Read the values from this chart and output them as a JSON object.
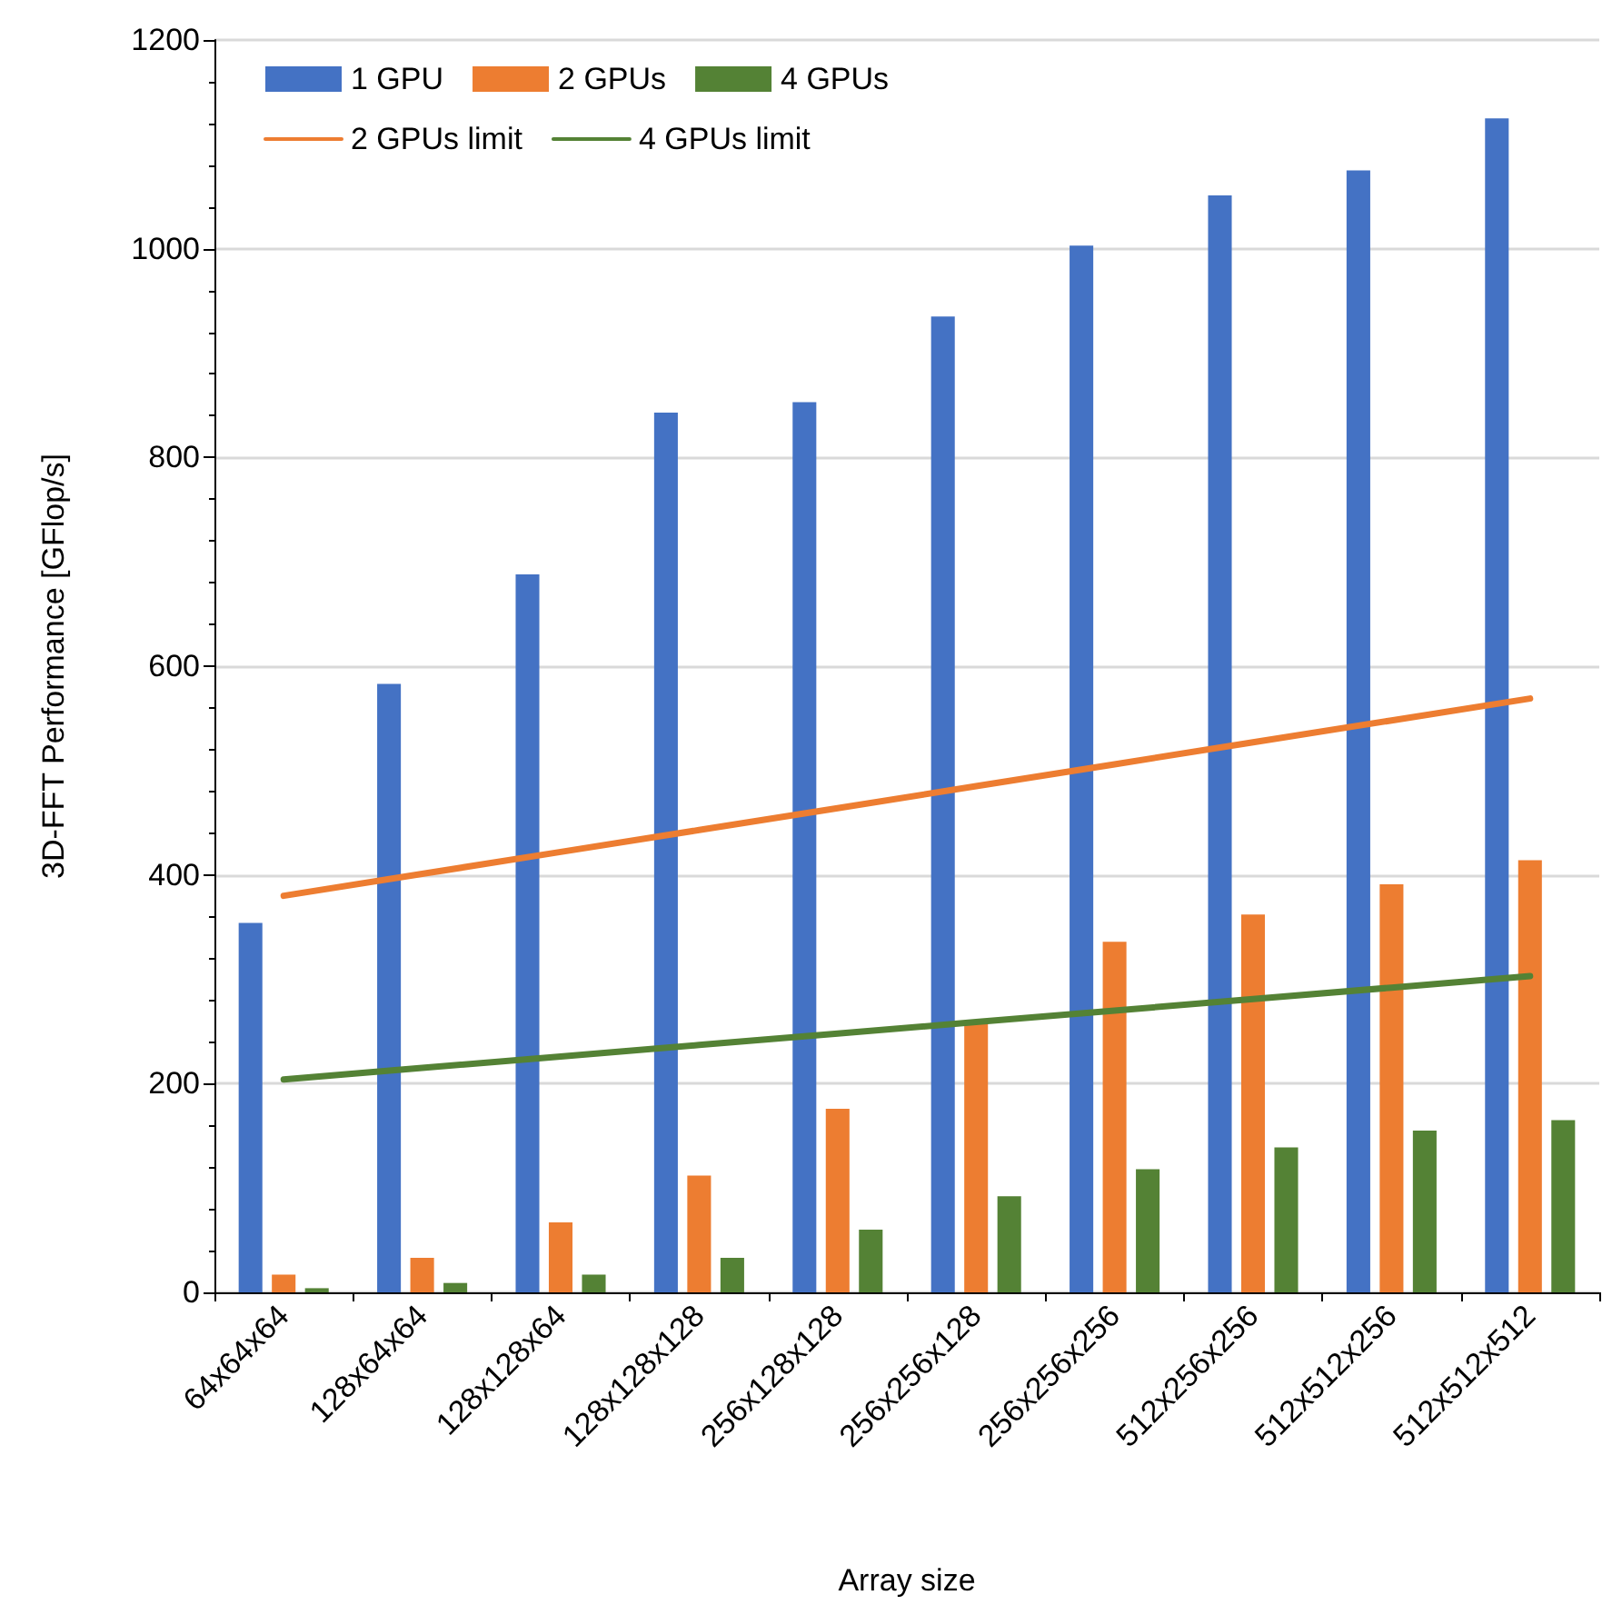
{
  "chart_data": {
    "type": "bar",
    "xlabel": "Array size",
    "ylabel": "3D-FFT Performance [GFlop/s]",
    "categories": [
      "64x64x64",
      "128x64x64",
      "128x128x64",
      "128x128x128",
      "256x128x128",
      "256x256x128",
      "256x256x256",
      "512x256x256",
      "512x512x256",
      "512x512x512"
    ],
    "series": [
      {
        "name": "1 GPU",
        "color": "#4472c4",
        "values": [
          354,
          583,
          688,
          843,
          853,
          935,
          1003,
          1051,
          1075,
          1125
        ]
      },
      {
        "name": "2 GPUs",
        "color": "#ed7d31",
        "values": [
          17,
          33,
          67,
          112,
          176,
          258,
          336,
          362,
          391,
          414
        ]
      },
      {
        "name": "4 GPUs",
        "color": "#548235",
        "values": [
          4,
          9,
          17,
          33,
          60,
          92,
          118,
          139,
          155,
          165
        ]
      },
      {
        "name": "2 GPUs limit",
        "type": "line",
        "color": "#ed7d31",
        "values": [
          380,
          401,
          422,
          443,
          464,
          485,
          506,
          527,
          548,
          569
        ]
      },
      {
        "name": "4 GPUs limit",
        "type": "line",
        "color": "#548235",
        "values": [
          204,
          215,
          226,
          237,
          248,
          259,
          270,
          281,
          292,
          303
        ]
      }
    ],
    "ylim": [
      0,
      1200
    ],
    "yticks": [
      0,
      200,
      400,
      600,
      800,
      1000,
      1200
    ],
    "grid": "y",
    "legend": "top left",
    "marker": "none",
    "line_style": "solid"
  }
}
